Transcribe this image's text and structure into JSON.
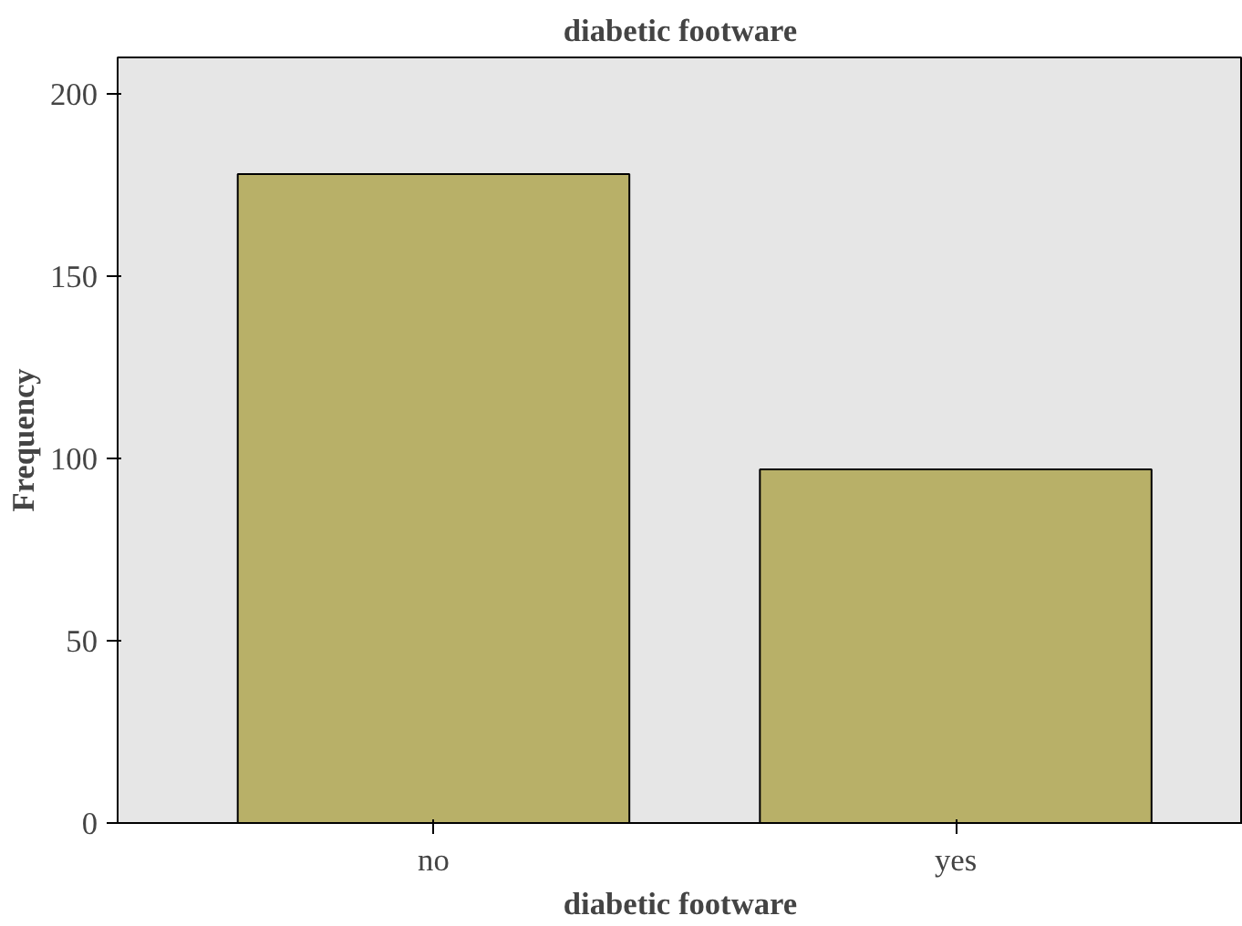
{
  "chart_data": {
    "type": "bar",
    "title": "diabetic footware",
    "xlabel": "diabetic footware",
    "ylabel": "Frequency",
    "categories": [
      "no",
      "yes"
    ],
    "values": [
      178,
      97
    ],
    "color": "#b8b068",
    "ylim": [
      0,
      210
    ],
    "yticks": [
      0,
      50,
      100,
      150,
      200
    ],
    "grid": false
  }
}
